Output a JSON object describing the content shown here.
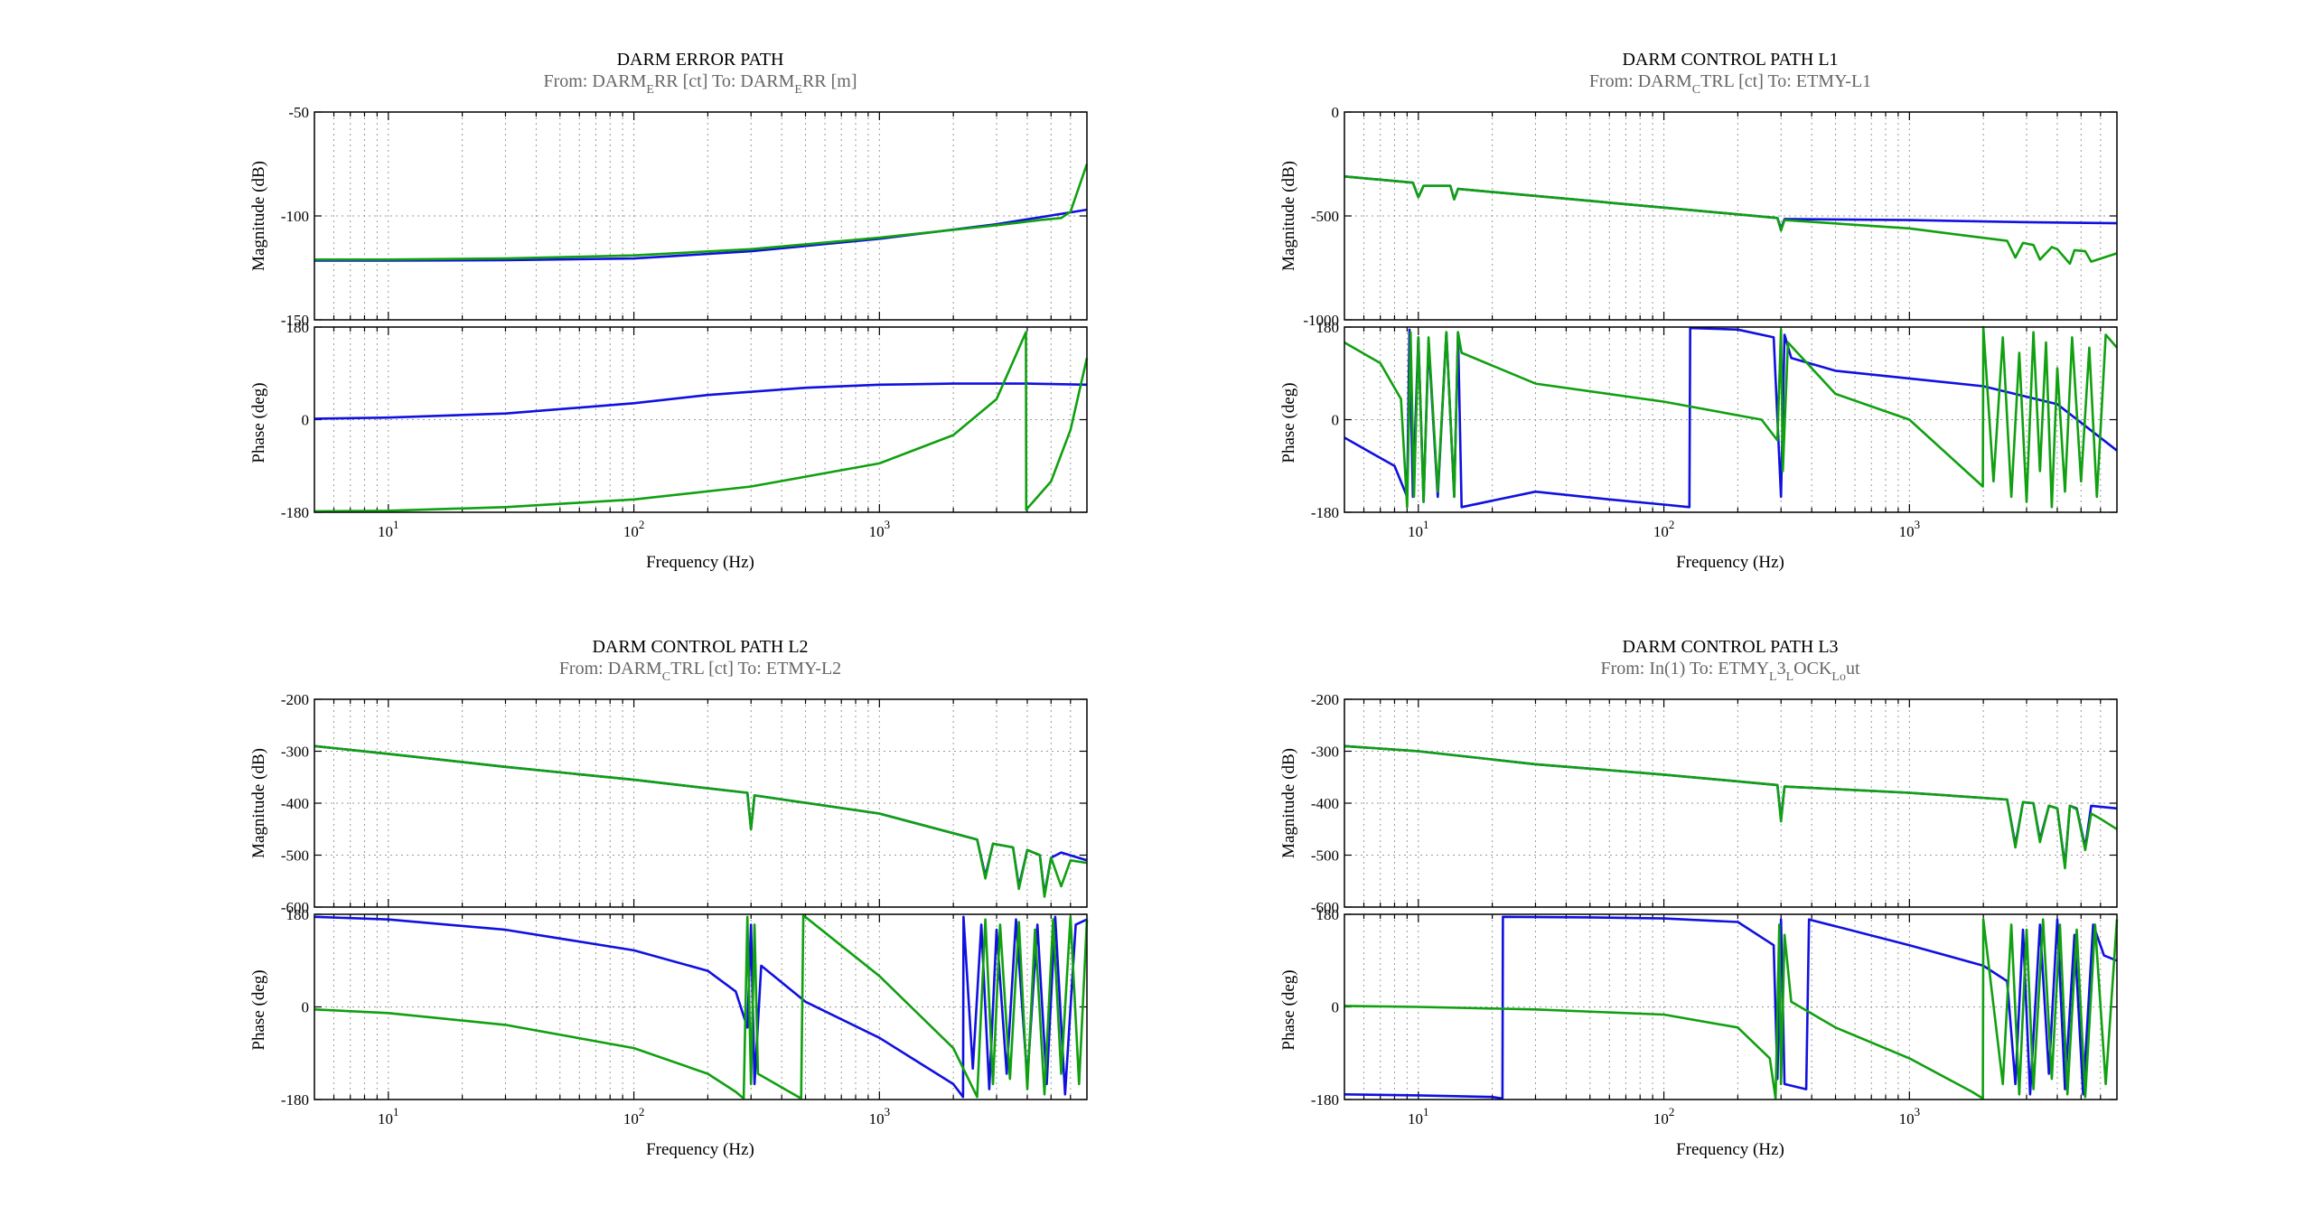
{
  "figure_type": "bode",
  "series_colors": {
    "blue": "#1010e0",
    "green": "#10a010"
  },
  "chart_data": [
    {
      "type": "line",
      "title": "DARM ERROR PATH",
      "subtitle": {
        "pre": "From: DARM",
        "sub1": "E",
        "mid": "RR [ct]  To: DARM",
        "sub2": "E",
        "post": "RR [m]"
      },
      "xlabel": "Frequency  (Hz)",
      "xscale": "log",
      "xlim": [
        5,
        7000
      ],
      "xticks": [
        "10",
        "100",
        "1000"
      ],
      "magnitude": {
        "ylabel": "Magnitude (dB)",
        "ylim": [
          -150,
          -50
        ],
        "yticks": [
          "-150",
          "-100",
          "-50"
        ],
        "series": [
          {
            "color": "blue",
            "x": [
              5,
              10,
              30,
              100,
              300,
              1000,
              3000,
              7000
            ],
            "y": [
              -121.5,
              -121.5,
              -121.3,
              -120.5,
              -117,
              -111,
              -104,
              -97
            ]
          },
          {
            "color": "green",
            "x": [
              5,
              10,
              30,
              100,
              300,
              1000,
              3000,
              4500,
              5500,
              6000,
              7000
            ],
            "y": [
              -121,
              -121,
              -120.5,
              -119,
              -116,
              -110.5,
              -104.5,
              -102,
              -101,
              -98,
              -75
            ]
          }
        ]
      },
      "phase": {
        "ylabel": "Phase (deg)",
        "ylim": [
          -180,
          180
        ],
        "yticks": [
          "-180",
          "0",
          "180"
        ],
        "series": [
          {
            "color": "blue",
            "x": [
              5,
              10,
              30,
              100,
              200,
              500,
              1000,
              2000,
              4000,
              7000
            ],
            "y": [
              2,
              4,
              12,
              32,
              48,
              62,
              68,
              70,
              70,
              68
            ]
          },
          {
            "color": "green",
            "x": [
              5,
              10,
              30,
              100,
              300,
              1000,
              2000,
              3000,
              3950,
              3960,
              5000,
              6000,
              7000
            ],
            "y": [
              -178,
              -177,
              -170,
              -155,
              -130,
              -85,
              -30,
              40,
              170,
              -175,
              -120,
              -20,
              120
            ]
          }
        ]
      }
    },
    {
      "type": "line",
      "title": "DARM CONTROL PATH L1",
      "subtitle": {
        "pre": "From: DARM",
        "sub1": "C",
        "mid": "TRL [ct]  To: ETMY-L1",
        "sub2": "",
        "post": ""
      },
      "xlabel": "Frequency  (Hz)",
      "xscale": "log",
      "xlim": [
        5,
        7000
      ],
      "xticks": [
        "10",
        "100",
        "1000"
      ],
      "magnitude": {
        "ylabel": "Magnitude (dB)",
        "ylim": [
          -1000,
          0
        ],
        "yticks": [
          "-1000",
          "-500",
          "0"
        ],
        "series": [
          {
            "color": "blue",
            "x": [
              5,
              9.5,
              10,
              10.5,
              13.5,
              14,
              14.5,
              100,
              290,
              300,
              310,
              1000,
              3000,
              7000
            ],
            "y": [
              -310,
              -340,
              -410,
              -355,
              -355,
              -420,
              -370,
              -460,
              -510,
              -560,
              -515,
              -520,
              -530,
              -535
            ]
          },
          {
            "color": "green",
            "x": [
              5,
              9.5,
              10,
              10.5,
              13.5,
              14,
              14.5,
              100,
              290,
              300,
              310,
              1000,
              2500,
              2700,
              2900,
              3200,
              3400,
              3800,
              4000,
              4500,
              4700,
              5200,
              5500,
              7000
            ],
            "y": [
              -310,
              -340,
              -410,
              -355,
              -355,
              -420,
              -370,
              -460,
              -510,
              -570,
              -520,
              -560,
              -620,
              -700,
              -630,
              -640,
              -710,
              -650,
              -660,
              -730,
              -665,
              -670,
              -720,
              -680
            ]
          }
        ]
      },
      "phase": {
        "ylabel": "Phase (deg)",
        "ylim": [
          -180,
          180
        ],
        "yticks": [
          "-180",
          "0",
          "180"
        ],
        "series": [
          {
            "color": "blue",
            "x": [
              5,
              8,
              9,
              9.2,
              9.5,
              10,
              10.5,
              11,
              12,
              13,
              14,
              14.5,
              15,
              30,
              60,
              100,
              127,
              128,
              200,
              280,
              300,
              310,
              330,
              500,
              1000,
              2000,
              4000,
              7000
            ],
            "y": [
              -35,
              -90,
              -150,
              175,
              -150,
              160,
              -160,
              150,
              -150,
              170,
              -150,
              170,
              -170,
              -140,
              -155,
              -165,
              -170,
              178,
              175,
              160,
              -150,
              165,
              120,
              95,
              80,
              65,
              30,
              -60
            ]
          },
          {
            "color": "green",
            "x": [
              5,
              7,
              8.5,
              9,
              9.3,
              9.6,
              10,
              10.5,
              11,
              12,
              13,
              14,
              14.5,
              15,
              30,
              100,
              250,
              290,
              300,
              305,
              320,
              500,
              1000,
              1990,
              2000,
              2200,
              2400,
              2600,
              2800,
              3000,
              3200,
              3400,
              3600,
              3800,
              4000,
              4300,
              4600,
              5000,
              5400,
              5800,
              6300,
              7000
            ],
            "y": [
              150,
              110,
              40,
              -170,
              170,
              -150,
              160,
              -160,
              160,
              -140,
              170,
              -150,
              170,
              130,
              70,
              35,
              0,
              -40,
              175,
              -100,
              150,
              50,
              0,
              -130,
              180,
              -120,
              160,
              -150,
              130,
              -160,
              170,
              -100,
              150,
              -170,
              100,
              -140,
              160,
              -120,
              140,
              -150,
              165,
              140
            ]
          }
        ]
      }
    },
    {
      "type": "line",
      "title": "DARM CONTROL PATH L2",
      "subtitle": {
        "pre": "From: DARM",
        "sub1": "C",
        "mid": "TRL [ct]  To: ETMY-L2",
        "sub2": "",
        "post": ""
      },
      "xlabel": "Frequency  (Hz)",
      "xscale": "log",
      "xlim": [
        5,
        7000
      ],
      "xticks": [
        "10",
        "100",
        "1000"
      ],
      "magnitude": {
        "ylabel": "Magnitude (dB)",
        "ylim": [
          -600,
          -200
        ],
        "yticks": [
          "-600",
          "-500",
          "-400",
          "-300",
          "-200"
        ],
        "series": [
          {
            "color": "blue",
            "x": [
              5,
              10,
              30,
              100,
              290,
              300,
              310,
              1000,
              2500,
              2700,
              2900,
              3500,
              3700,
              4000,
              4500,
              4700,
              5000,
              5500,
              7000
            ],
            "y": [
              -290,
              -305,
              -330,
              -355,
              -380,
              -450,
              -385,
              -420,
              -470,
              -540,
              -478,
              -485,
              -560,
              -490,
              -500,
              -575,
              -505,
              -495,
              -510
            ]
          },
          {
            "color": "green",
            "x": [
              5,
              10,
              30,
              100,
              290,
              300,
              310,
              1000,
              2500,
              2700,
              2900,
              3500,
              3700,
              4000,
              4500,
              4700,
              5000,
              5500,
              6000,
              7000
            ],
            "y": [
              -290,
              -305,
              -330,
              -355,
              -380,
              -450,
              -385,
              -420,
              -470,
              -545,
              -478,
              -485,
              -565,
              -490,
              -500,
              -580,
              -505,
              -560,
              -510,
              -515
            ]
          }
        ]
      },
      "phase": {
        "ylabel": "Phase (deg)",
        "ylim": [
          -180,
          180
        ],
        "yticks": [
          "-180",
          "0",
          "180"
        ],
        "series": [
          {
            "color": "blue",
            "x": [
              5,
              10,
              30,
              100,
              200,
              260,
              290,
              300,
              310,
              330,
              500,
              1000,
              2000,
              2190,
              2200,
              2400,
              2600,
              2800,
              3000,
              3300,
              3600,
              4000,
              4400,
              4800,
              5200,
              5700,
              6300,
              7000
            ],
            "y": [
              175,
              170,
              150,
              110,
              70,
              30,
              -40,
              160,
              -150,
              80,
              10,
              -60,
              -150,
              -175,
              175,
              -120,
              160,
              -160,
              150,
              -130,
              170,
              -140,
              160,
              -150,
              175,
              -170,
              160,
              170
            ]
          },
          {
            "color": "green",
            "x": [
              5,
              10,
              30,
              100,
              200,
              260,
              280,
              290,
              300,
              310,
              320,
              480,
              490,
              1000,
              2000,
              2500,
              2700,
              2900,
              3100,
              3400,
              3700,
              4000,
              4300,
              4700,
              5100,
              5500,
              6000,
              6500,
              7000
            ],
            "y": [
              -5,
              -12,
              -35,
              -80,
              -130,
              -165,
              -178,
              175,
              -150,
              160,
              -130,
              -178,
              178,
              60,
              -80,
              -175,
              170,
              -150,
              160,
              -140,
              165,
              -160,
              150,
              -170,
              170,
              -130,
              175,
              -150,
              170
            ]
          }
        ]
      }
    },
    {
      "type": "line",
      "title": "DARM CONTROL PATH L3",
      "subtitle": {
        "pre": "From: In(1)  To: ETMY",
        "sub1": "L",
        "mid": "3",
        "sub2": "L",
        "post": "OCK",
        "sub3": "Lo",
        "post2": "ut"
      },
      "xlabel": "Frequency  (Hz)",
      "xscale": "log",
      "xlim": [
        5,
        7000
      ],
      "xticks": [
        "10",
        "100",
        "1000"
      ],
      "magnitude": {
        "ylabel": "Magnitude (dB)",
        "ylim": [
          -600,
          -200
        ],
        "yticks": [
          "-600",
          "-500",
          "-400",
          "-300",
          "-200"
        ],
        "series": [
          {
            "color": "blue",
            "x": [
              5,
              10,
              30,
              100,
              290,
              300,
              310,
              1000,
              2500,
              2700,
              2900,
              3200,
              3400,
              3700,
              4000,
              4300,
              4500,
              4800,
              5200,
              5500,
              7000
            ],
            "y": [
              -290,
              -300,
              -325,
              -345,
              -365,
              -430,
              -368,
              -380,
              -393,
              -480,
              -398,
              -400,
              -470,
              -405,
              -410,
              -520,
              -405,
              -410,
              -485,
              -405,
              -410
            ]
          },
          {
            "color": "green",
            "x": [
              5,
              10,
              30,
              100,
              290,
              300,
              310,
              1000,
              2500,
              2700,
              2900,
              3200,
              3400,
              3700,
              4000,
              4300,
              4500,
              4800,
              5200,
              5500,
              6000,
              7000
            ],
            "y": [
              -290,
              -300,
              -325,
              -345,
              -365,
              -435,
              -368,
              -380,
              -393,
              -485,
              -398,
              -400,
              -475,
              -405,
              -410,
              -525,
              -405,
              -412,
              -490,
              -420,
              -430,
              -450
            ]
          }
        ]
      },
      "phase": {
        "ylabel": "Phase (deg)",
        "ylim": [
          -180,
          180
        ],
        "yticks": [
          "-180",
          "0",
          "180"
        ],
        "series": [
          {
            "color": "blue",
            "x": [
              5,
              10,
              20,
              22,
              22.1,
              50,
              100,
              200,
              280,
              290,
              300,
              310,
              380,
              390,
              1000,
              2000,
              2500,
              2700,
              2900,
              3100,
              3400,
              3700,
              4000,
              4300,
              4700,
              5100,
              5600,
              6200,
              7000
            ],
            "y": [
              -170,
              -172,
              -175,
              -178,
              175,
              174,
              172,
              165,
              120,
              -140,
              170,
              -150,
              -160,
              170,
              120,
              80,
              50,
              -150,
              150,
              -170,
              160,
              -130,
              170,
              -160,
              140,
              -170,
              160,
              100,
              90
            ]
          },
          {
            "color": "green",
            "x": [
              5,
              10,
              30,
              100,
              200,
              270,
              285,
              295,
              300,
              310,
              330,
              500,
              1000,
              1800,
              1990,
              2000,
              2400,
              2600,
              2800,
              3000,
              3200,
              3500,
              3800,
              4100,
              4400,
              4800,
              5200,
              5700,
              6300,
              7000
            ],
            "y": [
              2,
              0,
              -5,
              -15,
              -40,
              -100,
              -178,
              160,
              -150,
              140,
              10,
              -40,
              -100,
              -165,
              -178,
              170,
              -150,
              160,
              -170,
              150,
              -160,
              170,
              -140,
              160,
              -170,
              150,
              -175,
              160,
              -150,
              170
            ]
          }
        ]
      }
    }
  ]
}
